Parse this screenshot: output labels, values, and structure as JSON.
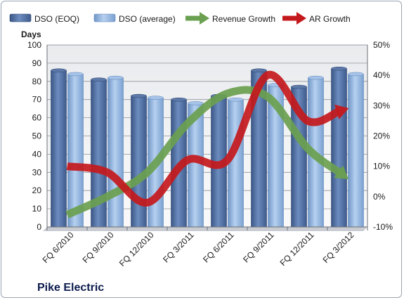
{
  "chart_data": {
    "type": "bar",
    "title": "Pike Electric",
    "ylabel_left": "Days",
    "ylabel_right": "",
    "xlabel": "",
    "categories": [
      "FQ 6/2010",
      "FQ 9/2010",
      "FQ 12/2010",
      "FQ 3/2011",
      "FQ 6/2011",
      "FQ 9/2011",
      "FQ 12/2011",
      "FQ 3/2012"
    ],
    "ylim_left": [
      0,
      100
    ],
    "ylim_right": [
      -10,
      50
    ],
    "left_ticks": [
      "0",
      "10",
      "20",
      "30",
      "40",
      "50",
      "60",
      "70",
      "80",
      "90",
      "100"
    ],
    "right_ticks": [
      "-10%",
      "0%",
      "10%",
      "20%",
      "30%",
      "40%",
      "50%"
    ],
    "grid": true,
    "legend_position": "top",
    "series": [
      {
        "name": "DSO (EOQ)",
        "kind": "bar",
        "axis": "left",
        "color": "#4f6d9e",
        "values": [
          86,
          81,
          72,
          70,
          72,
          86,
          77,
          87
        ]
      },
      {
        "name": "DSO (average)",
        "kind": "bar",
        "axis": "left",
        "color": "#8eb4e3",
        "values": [
          84,
          82,
          71,
          68,
          70,
          78,
          82,
          84
        ]
      },
      {
        "name": "Revenue Growth",
        "kind": "line-arrow",
        "axis": "right",
        "color": "#6aa04f",
        "values": [
          -6,
          0,
          8,
          24,
          34,
          33,
          16,
          6
        ]
      },
      {
        "name": "AR Growth",
        "kind": "line-arrow",
        "axis": "right",
        "color": "#c4191c",
        "values": [
          10,
          8,
          -2,
          12,
          12,
          40,
          25,
          29
        ]
      }
    ]
  }
}
